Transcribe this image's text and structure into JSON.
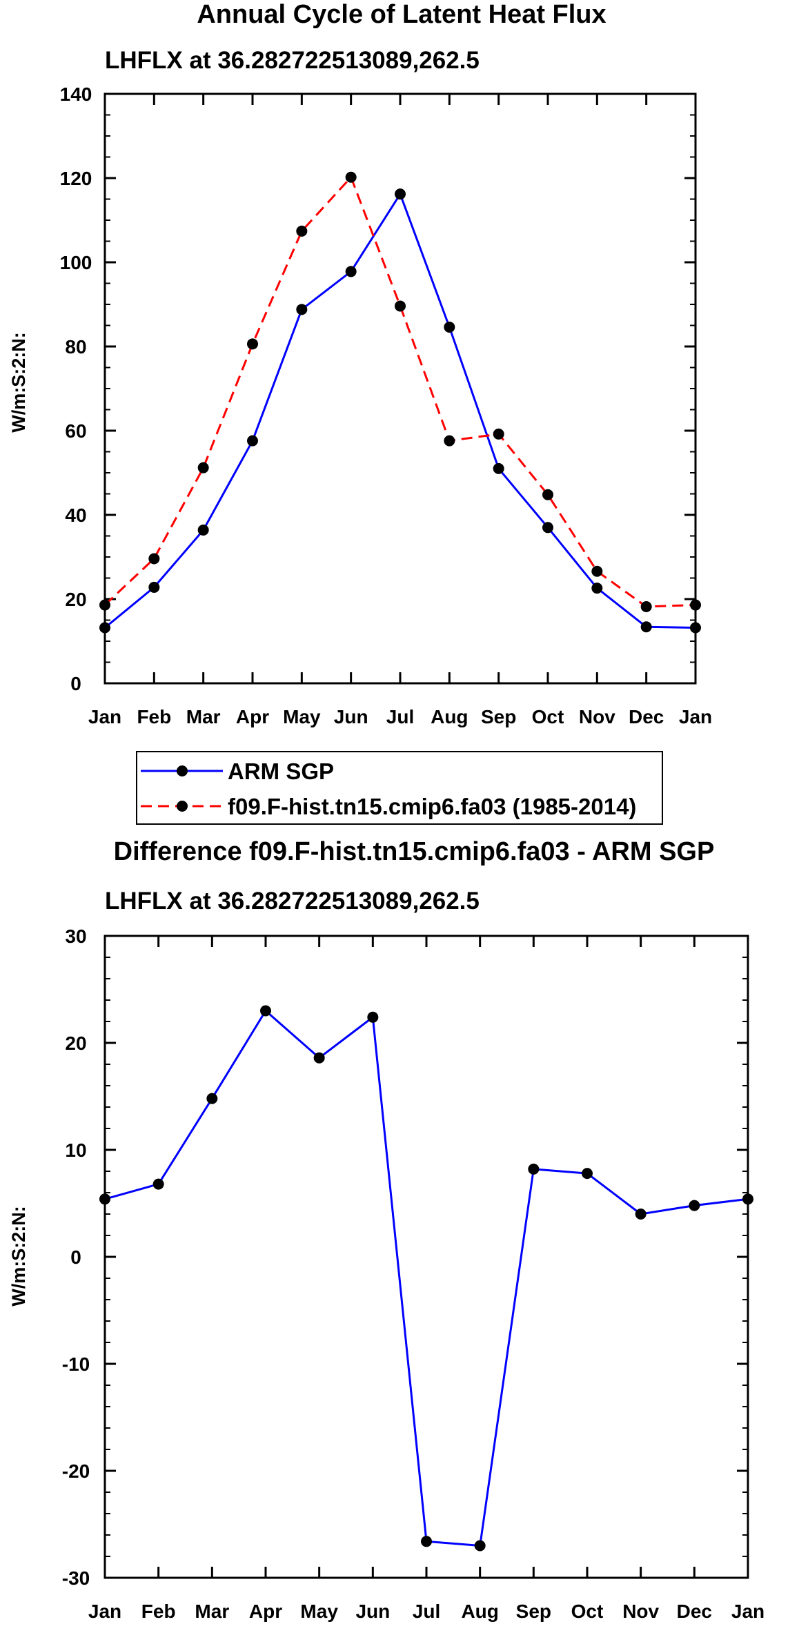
{
  "chart_data": [
    {
      "type": "line",
      "title": "Annual Cycle of Latent Heat Flux",
      "subtitle": "LHFLX at 36.282722513089,262.5",
      "ylabel": "W/m:S:2:N:",
      "xlabel": "",
      "ylim": [
        0,
        140
      ],
      "yticks": [
        0,
        20,
        40,
        60,
        80,
        100,
        120,
        140
      ],
      "categories": [
        "Jan",
        "Feb",
        "Mar",
        "Apr",
        "May",
        "Jun",
        "Jul",
        "Aug",
        "Sep",
        "Oct",
        "Nov",
        "Dec",
        "Jan"
      ],
      "series": [
        {
          "name": "ARM SGP",
          "color": "#0000ff",
          "style": "solid",
          "values": [
            13.2,
            22.8,
            36.4,
            57.6,
            88.8,
            97.8,
            116.2,
            84.6,
            51.0,
            37.0,
            22.6,
            13.4,
            13.2
          ]
        },
        {
          "name": "f09.F-hist.tn15.cmip6.fa03 (1985-2014)",
          "color": "#ff0000",
          "style": "dashed",
          "values": [
            18.6,
            29.6,
            51.2,
            80.6,
            107.4,
            120.2,
            89.6,
            57.6,
            59.2,
            44.8,
            26.6,
            18.2,
            18.6
          ]
        }
      ],
      "legend": "below"
    },
    {
      "type": "line",
      "title": "Difference f09.F-hist.tn15.cmip6.fa03 - ARM SGP",
      "subtitle": "LHFLX at 36.282722513089,262.5",
      "ylabel": "W/m:S:2:N:",
      "xlabel": "",
      "ylim": [
        -30,
        30
      ],
      "yticks": [
        -30,
        -20,
        -10,
        0,
        10,
        20,
        30
      ],
      "categories": [
        "Jan",
        "Feb",
        "Mar",
        "Apr",
        "May",
        "Jun",
        "Jul",
        "Aug",
        "Sep",
        "Oct",
        "Nov",
        "Dec",
        "Jan"
      ],
      "series": [
        {
          "name": "Difference",
          "color": "#0000ff",
          "style": "solid",
          "values": [
            5.4,
            6.8,
            14.8,
            23.0,
            18.6,
            22.4,
            -26.6,
            -27.0,
            8.2,
            7.8,
            4.0,
            4.8,
            5.4
          ]
        }
      ]
    }
  ]
}
